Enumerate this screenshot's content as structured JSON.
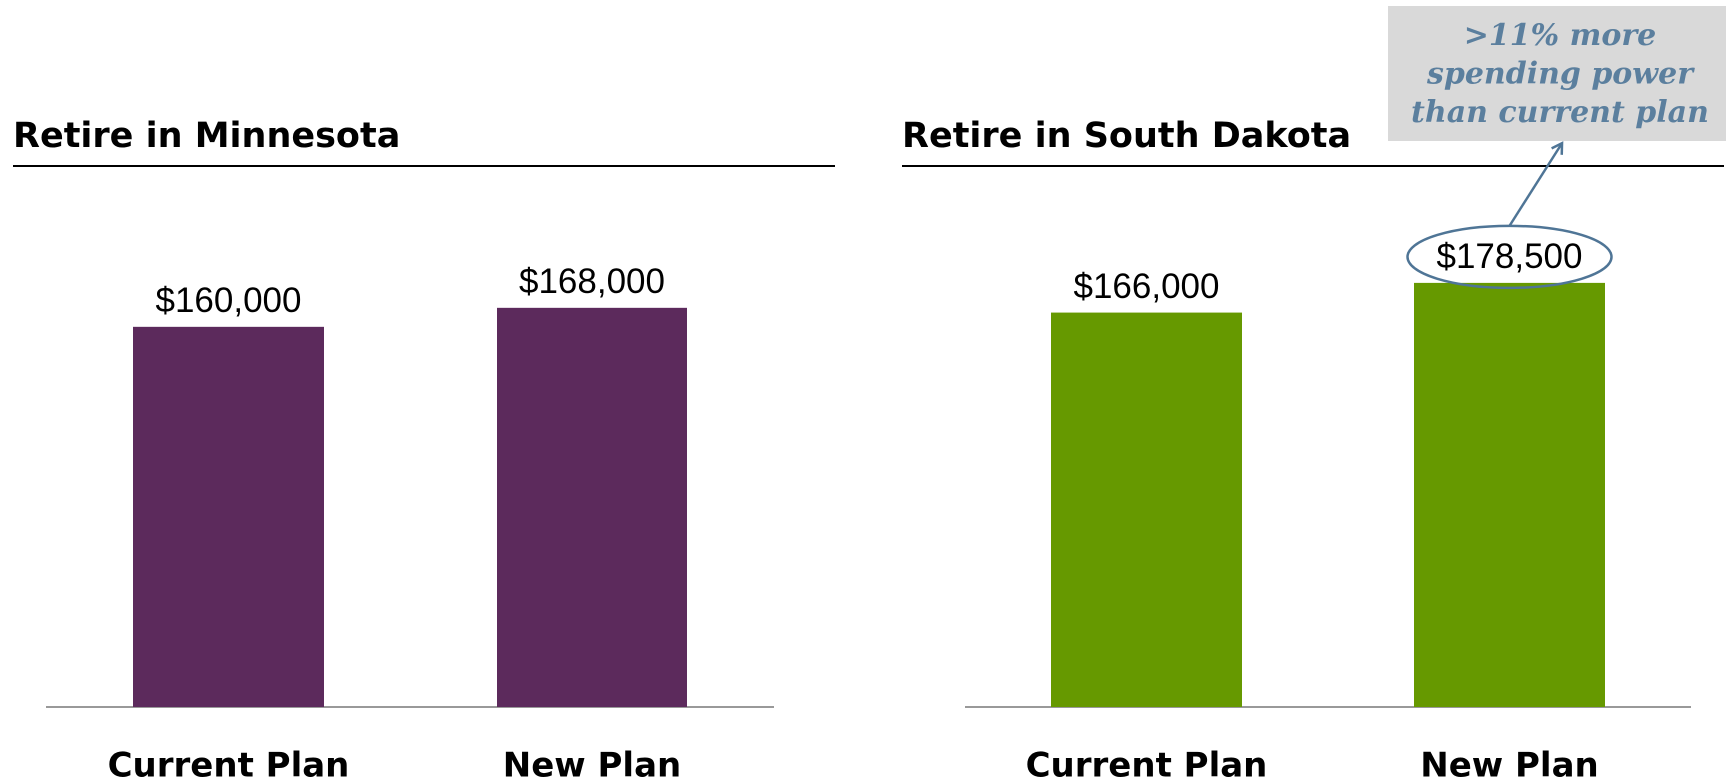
{
  "chart_data": [
    {
      "type": "bar",
      "title": "Retire in Minnesota",
      "categories": [
        "Current Plan",
        "New Plan"
      ],
      "values": [
        160000,
        168000
      ],
      "value_labels": [
        "$160,000",
        "$168,000"
      ],
      "color": "#5c2a5c",
      "ylim": [
        0,
        250000
      ]
    },
    {
      "type": "bar",
      "title": "Retire in South Dakota",
      "categories": [
        "Current Plan",
        "New Plan"
      ],
      "values": [
        166000,
        178500
      ],
      "value_labels": [
        "$166,000",
        "$178,500"
      ],
      "color": "#669900",
      "ylim": [
        0,
        250000
      ],
      "annotation": [
        ">11% more",
        "spending power",
        "than current plan"
      ]
    }
  ]
}
